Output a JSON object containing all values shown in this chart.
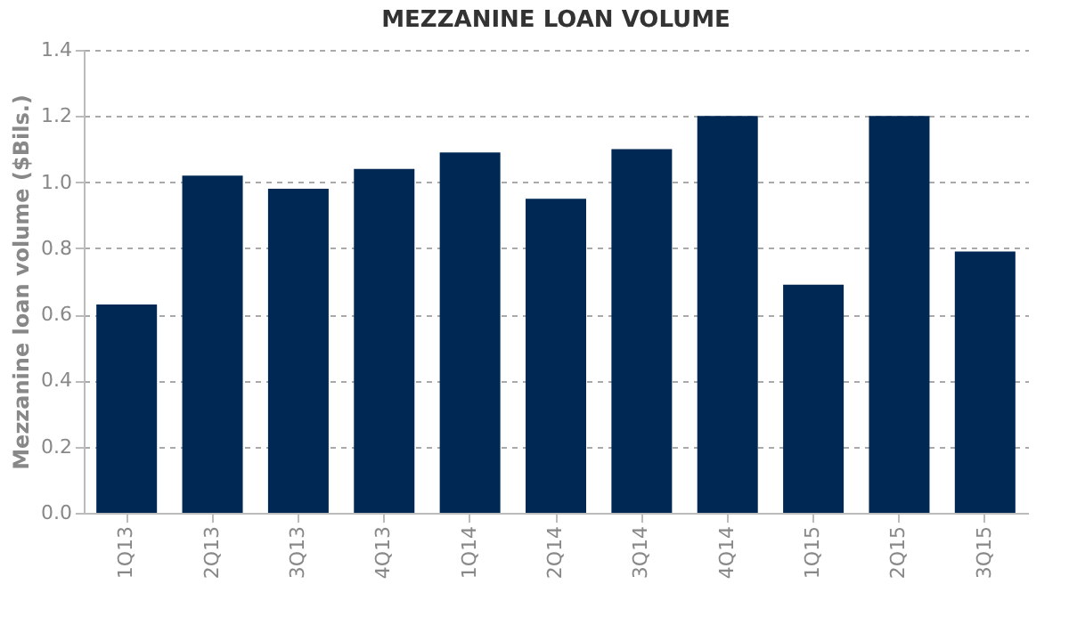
{
  "chart_data": {
    "type": "bar",
    "title": "MEZZANINE LOAN VOLUME",
    "ylabel": "Mezzanine loan volume ($Bils.)",
    "categories": [
      "1Q13",
      "2Q13",
      "3Q13",
      "4Q13",
      "1Q14",
      "2Q14",
      "3Q14",
      "4Q14",
      "1Q15",
      "2Q15",
      "3Q15"
    ],
    "values": [
      0.63,
      1.02,
      0.98,
      1.04,
      1.09,
      0.95,
      1.1,
      1.2,
      0.69,
      1.2,
      0.79
    ],
    "color": "#002855",
    "ylim": [
      0,
      1.4
    ],
    "yticks": [
      {
        "value": 0,
        "label": "0.0"
      },
      {
        "value": 0.2,
        "label": "0.2"
      },
      {
        "value": 0.4,
        "label": "0.4"
      },
      {
        "value": 0.6,
        "label": "0.6"
      },
      {
        "value": 0.8,
        "label": "0.8"
      },
      {
        "value": 1,
        "label": "1.0"
      },
      {
        "value": 1.2,
        "label": "1.2"
      },
      {
        "value": 1.4,
        "label": "1.4"
      }
    ],
    "grid": "y"
  }
}
